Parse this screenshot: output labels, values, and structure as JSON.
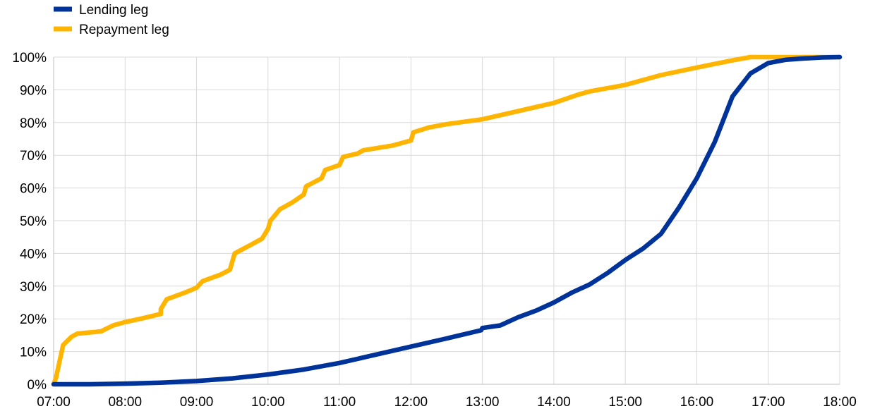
{
  "chart_data": {
    "type": "line",
    "title": "",
    "xlabel": "",
    "ylabel": "",
    "x_ticks": [
      "07:00",
      "08:00",
      "09:00",
      "10:00",
      "11:00",
      "12:00",
      "13:00",
      "14:00",
      "15:00",
      "16:00",
      "17:00",
      "18:00"
    ],
    "y_ticks": [
      "0%",
      "10%",
      "20%",
      "30%",
      "40%",
      "50%",
      "60%",
      "70%",
      "80%",
      "90%",
      "100%"
    ],
    "xlim": [
      "07:00",
      "18:00"
    ],
    "ylim": [
      0,
      100
    ],
    "grid": true,
    "legend_position": "top-left",
    "series": [
      {
        "name": "Lending leg",
        "color": "#003399",
        "points": [
          [
            "07:00",
            0
          ],
          [
            "07:30",
            0
          ],
          [
            "08:00",
            0.2
          ],
          [
            "08:30",
            0.5
          ],
          [
            "09:00",
            1
          ],
          [
            "09:30",
            1.8
          ],
          [
            "10:00",
            3
          ],
          [
            "10:30",
            4.5
          ],
          [
            "11:00",
            6.5
          ],
          [
            "11:30",
            9
          ],
          [
            "12:00",
            11.5
          ],
          [
            "12:30",
            14
          ],
          [
            "12:59",
            16.5
          ],
          [
            "13:00",
            17.2
          ],
          [
            "13:15",
            18
          ],
          [
            "13:30",
            20.5
          ],
          [
            "13:45",
            22.5
          ],
          [
            "14:00",
            25
          ],
          [
            "14:15",
            28
          ],
          [
            "14:30",
            30.5
          ],
          [
            "14:45",
            34
          ],
          [
            "15:00",
            38
          ],
          [
            "15:15",
            41.5
          ],
          [
            "15:30",
            46
          ],
          [
            "15:45",
            54
          ],
          [
            "16:00",
            63
          ],
          [
            "16:15",
            74
          ],
          [
            "16:30",
            88
          ],
          [
            "16:45",
            95
          ],
          [
            "17:00",
            98.2
          ],
          [
            "17:15",
            99.2
          ],
          [
            "17:30",
            99.6
          ],
          [
            "17:45",
            99.9
          ],
          [
            "18:00",
            100
          ]
        ]
      },
      {
        "name": "Repayment leg",
        "color": "#FFB400",
        "points": [
          [
            "07:00",
            0
          ],
          [
            "07:02",
            2
          ],
          [
            "07:05",
            7
          ],
          [
            "07:08",
            12
          ],
          [
            "07:15",
            14.5
          ],
          [
            "07:20",
            15.5
          ],
          [
            "07:35",
            16
          ],
          [
            "07:40",
            16.2
          ],
          [
            "07:50",
            18
          ],
          [
            "08:00",
            19
          ],
          [
            "08:15",
            20.2
          ],
          [
            "08:30",
            21.5
          ],
          [
            "08:30",
            23
          ],
          [
            "08:35",
            26
          ],
          [
            "08:50",
            28
          ],
          [
            "09:00",
            29.5
          ],
          [
            "09:05",
            31.5
          ],
          [
            "09:20",
            33.5
          ],
          [
            "09:28",
            35
          ],
          [
            "09:30",
            37.5
          ],
          [
            "09:32",
            40
          ],
          [
            "09:45",
            42.5
          ],
          [
            "09:55",
            44.5
          ],
          [
            "10:00",
            47.5
          ],
          [
            "10:02",
            50
          ],
          [
            "10:10",
            53.5
          ],
          [
            "10:20",
            55.5
          ],
          [
            "10:30",
            58
          ],
          [
            "10:32",
            60.5
          ],
          [
            "10:45",
            63
          ],
          [
            "10:48",
            65.5
          ],
          [
            "11:00",
            67
          ],
          [
            "11:03",
            69.5
          ],
          [
            "11:15",
            70.5
          ],
          [
            "11:20",
            71.5
          ],
          [
            "11:45",
            73
          ],
          [
            "12:00",
            74.5
          ],
          [
            "12:02",
            77
          ],
          [
            "12:15",
            78.5
          ],
          [
            "12:30",
            79.5
          ],
          [
            "13:00",
            81
          ],
          [
            "13:30",
            83.5
          ],
          [
            "14:00",
            86
          ],
          [
            "14:20",
            88.5
          ],
          [
            "14:30",
            89.5
          ],
          [
            "15:00",
            91.5
          ],
          [
            "15:30",
            94.5
          ],
          [
            "16:00",
            96.8
          ],
          [
            "16:30",
            99
          ],
          [
            "16:45",
            100
          ],
          [
            "18:00",
            100
          ]
        ]
      }
    ]
  }
}
